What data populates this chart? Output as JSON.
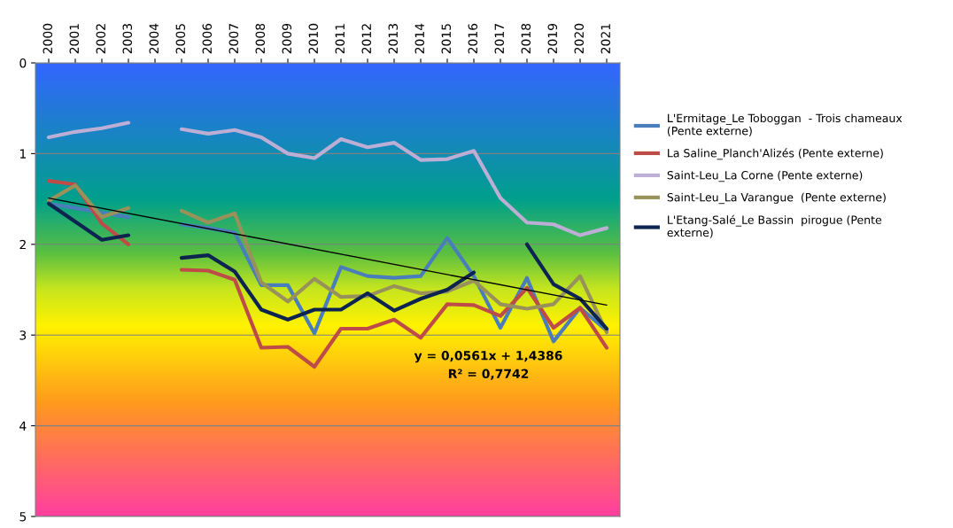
{
  "chart_data": {
    "type": "line",
    "categories": [
      "2000",
      "2001",
      "2002",
      "2003",
      "2004",
      "2005",
      "2006",
      "2007",
      "2008",
      "2009",
      "2010",
      "2011",
      "2012",
      "2013",
      "2014",
      "2015",
      "2016",
      "2017",
      "2018",
      "2019",
      "2020",
      "2021"
    ],
    "ylim": [
      5,
      0
    ],
    "yticks": [
      0,
      1,
      2,
      3,
      4,
      5
    ],
    "grid": "y",
    "legend": "right",
    "marker": "none",
    "line_style": "solid",
    "series": [
      {
        "name": "L'Ermitage_Le Toboggan  - Trois chameaux (Pente externe)",
        "color": "#4a7ebb",
        "values": [
          1.55,
          1.6,
          1.65,
          1.7,
          null,
          1.78,
          1.82,
          1.87,
          2.45,
          2.45,
          2.98,
          2.25,
          2.35,
          2.37,
          2.35,
          1.93,
          2.35,
          2.92,
          2.37,
          3.07,
          2.7,
          2.95
        ]
      },
      {
        "name": "La Saline_Planch'Alizés (Pente externe)",
        "color": "#be4b48",
        "values": [
          1.3,
          1.34,
          1.77,
          2.0,
          null,
          2.28,
          2.29,
          2.39,
          3.14,
          3.13,
          3.35,
          2.93,
          2.93,
          2.83,
          3.03,
          2.66,
          2.67,
          2.79,
          2.48,
          2.92,
          2.7,
          3.14
        ]
      },
      {
        "name": "Saint-Leu_La Corne (Pente externe)",
        "color": "#bcaed4",
        "values": [
          0.82,
          0.76,
          0.72,
          0.66,
          null,
          0.73,
          0.78,
          0.74,
          0.82,
          1.0,
          1.05,
          0.84,
          0.93,
          0.88,
          1.07,
          1.06,
          0.97,
          1.49,
          1.76,
          1.78,
          1.9,
          1.82
        ]
      },
      {
        "name": "Saint-Leu_La Varangue  (Pente externe)",
        "color": "#98915a",
        "values": [
          1.52,
          1.35,
          1.7,
          1.6,
          null,
          1.63,
          1.76,
          1.66,
          2.42,
          2.63,
          2.38,
          2.58,
          2.57,
          2.46,
          2.54,
          2.52,
          2.4,
          2.66,
          2.71,
          2.66,
          2.35,
          2.97
        ]
      },
      {
        "name": "L'Etang-Salé_Le Bassin  pirogue (Pente externe)",
        "color": "#0d2350",
        "values": [
          1.55,
          1.75,
          1.95,
          1.9,
          null,
          2.15,
          2.12,
          2.3,
          2.72,
          2.83,
          2.72,
          2.72,
          2.54,
          2.73,
          2.6,
          2.5,
          2.31,
          null,
          2.0,
          2.44,
          2.6,
          2.93
        ]
      },
      {
        "type": "line",
        "color": "#000000",
        "values": [
          1.49,
          null,
          null,
          null,
          null,
          null,
          null,
          null,
          null,
          null,
          null,
          null,
          null,
          null,
          null,
          null,
          null,
          null,
          null,
          null,
          null,
          2.67
        ]
      }
    ],
    "annotations": [
      "y = 0,0561x + 1,4386",
      "R² = 0,7742"
    ]
  }
}
